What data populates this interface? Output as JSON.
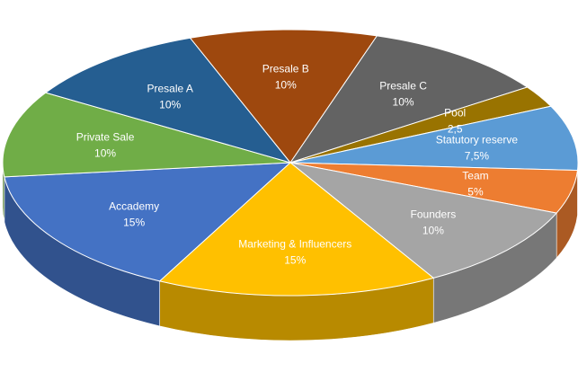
{
  "chart_data": {
    "type": "pie",
    "style": "3d",
    "title": "",
    "slices": [
      {
        "label": "Accademy",
        "value": 15,
        "value_label": "15%",
        "color": "#4472C4"
      },
      {
        "label": "Private Sale",
        "value": 10,
        "value_label": "10%",
        "color": "#70AD47"
      },
      {
        "label": "Presale A",
        "value": 10,
        "value_label": "10%",
        "color": "#255E91"
      },
      {
        "label": "Presale B",
        "value": 10,
        "value_label": "10%",
        "color": "#9E480E"
      },
      {
        "label": "Presale C",
        "value": 10,
        "value_label": "10%",
        "color": "#636363"
      },
      {
        "label": "Pool",
        "value": 2.5,
        "value_label": "2,5",
        "color": "#997300"
      },
      {
        "label": "Statutory reserve",
        "value": 7.5,
        "value_label": "7,5%",
        "color": "#5B9BD5"
      },
      {
        "label": "Team",
        "value": 5,
        "value_label": "5%",
        "color": "#ED7D31"
      },
      {
        "label": "Founders",
        "value": 10,
        "value_label": "10%",
        "color": "#A5A5A5"
      },
      {
        "label": "Marketing & Influencers",
        "value": 15,
        "value_label": "15%",
        "color": "#FFC000"
      }
    ]
  }
}
